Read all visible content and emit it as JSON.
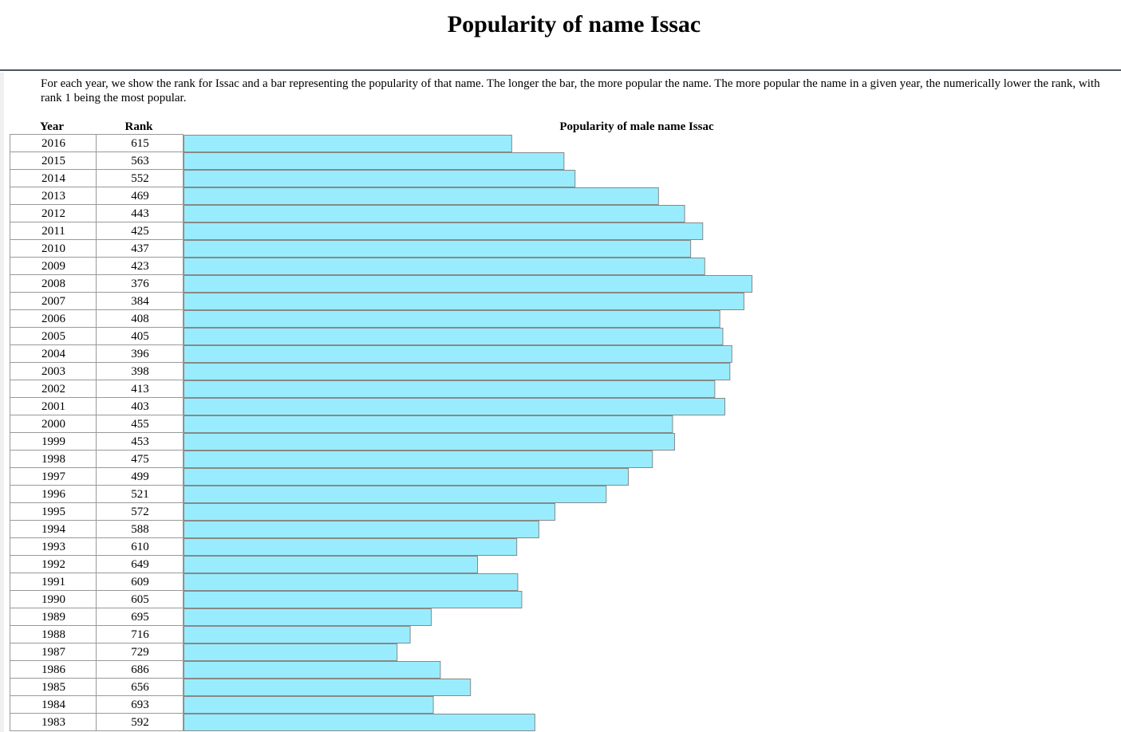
{
  "page": {
    "title": "Popularity of name Issac",
    "description": "For each year, we show the rank for Issac and a bar representing the popularity of that name. The longer the bar, the more popular the name. The more popular the name in a given year, the numerically lower the rank, with rank 1 being the most popular."
  },
  "chart_data": {
    "type": "bar",
    "orientation": "horizontal",
    "title": "Popularity of male name Issac",
    "columns": [
      "Year",
      "Rank"
    ],
    "categories": [
      "2016",
      "2015",
      "2014",
      "2013",
      "2012",
      "2011",
      "2010",
      "2009",
      "2008",
      "2007",
      "2006",
      "2005",
      "2004",
      "2003",
      "2002",
      "2001",
      "2000",
      "1999",
      "1998",
      "1997",
      "1996",
      "1995",
      "1994",
      "1993",
      "1992",
      "1991",
      "1990",
      "1989",
      "1988",
      "1987",
      "1986",
      "1985",
      "1984",
      "1983"
    ],
    "values": [
      615,
      563,
      552,
      469,
      443,
      425,
      437,
      423,
      376,
      384,
      408,
      405,
      396,
      398,
      413,
      403,
      455,
      453,
      475,
      499,
      521,
      572,
      588,
      610,
      649,
      609,
      605,
      695,
      716,
      729,
      686,
      656,
      693,
      592
    ],
    "bar_color": "#99ecfd",
    "bar_border_color": "#888888",
    "grid_line_color": "#999999"
  }
}
